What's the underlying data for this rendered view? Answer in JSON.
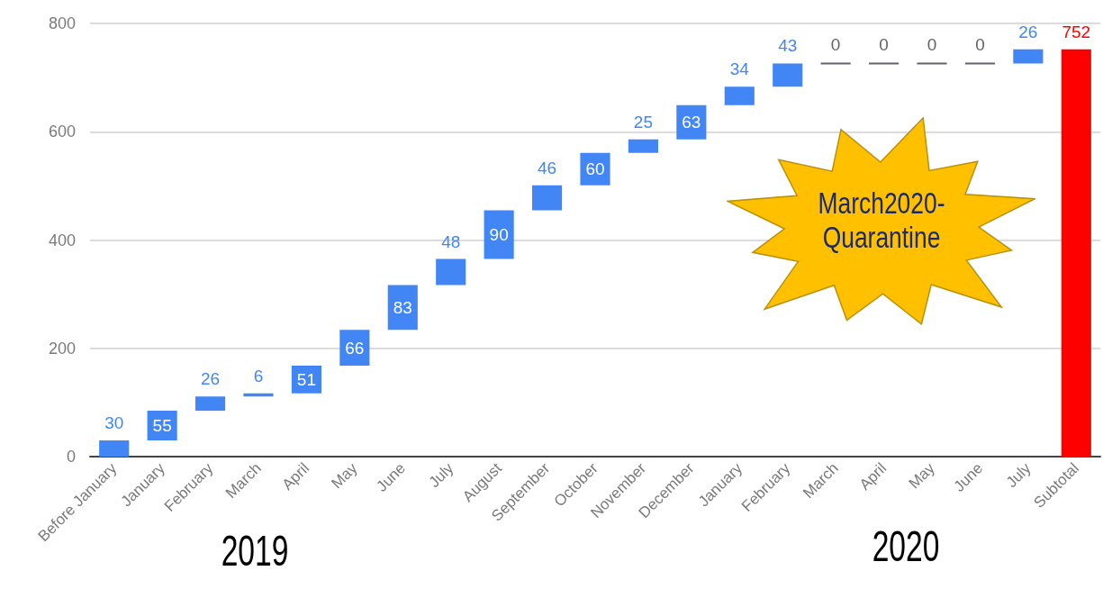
{
  "chart_data": {
    "type": "bar",
    "categories": [
      "Before January",
      "January",
      "February",
      "March",
      "April",
      "May",
      "June",
      "July",
      "August",
      "September",
      "October",
      "November",
      "December",
      "January",
      "February",
      "March",
      "April",
      "May",
      "June",
      "July",
      "Subtotal"
    ],
    "values": [
      30,
      55,
      26,
      6,
      51,
      66,
      83,
      48,
      90,
      46,
      60,
      25,
      63,
      34,
      43,
      0,
      0,
      0,
      0,
      26,
      752
    ],
    "base": [
      0,
      30,
      85,
      111,
      117,
      168,
      234,
      317,
      365,
      455,
      501,
      561,
      586,
      649,
      683,
      726,
      726,
      726,
      726,
      726,
      0
    ],
    "colors": [
      "#4285f4",
      "#4285f4",
      "#4285f4",
      "#4285f4",
      "#4285f4",
      "#4285f4",
      "#4285f4",
      "#4285f4",
      "#4285f4",
      "#4285f4",
      "#4285f4",
      "#4285f4",
      "#4285f4",
      "#4285f4",
      "#4285f4",
      "#5f6368",
      "#5f6368",
      "#5f6368",
      "#5f6368",
      "#4285f4",
      "#ff0000"
    ],
    "ylim": [
      0,
      800
    ],
    "yticks": [
      0,
      200,
      400,
      600,
      800
    ],
    "grid": "y",
    "data_labels": true,
    "annotations": [
      "2019",
      "2020",
      "March2020-Quarantine"
    ]
  }
}
